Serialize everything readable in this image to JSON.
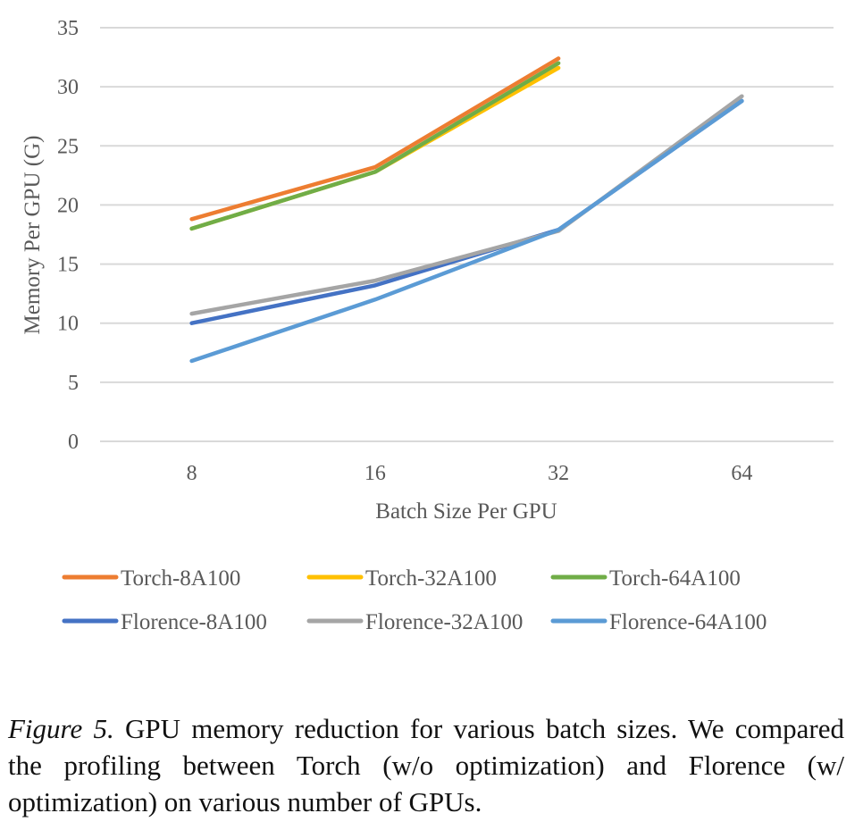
{
  "chart_data": {
    "type": "line",
    "title": "",
    "xlabel": "Batch Size Per GPU",
    "ylabel": "Memory Per GPU (G)",
    "categories": [
      "8",
      "16",
      "32",
      "64"
    ],
    "ylim": [
      0,
      35
    ],
    "yticks": [
      0,
      5,
      10,
      15,
      20,
      25,
      30,
      35
    ],
    "grid": true,
    "legend_position": "bottom",
    "series": [
      {
        "name": "Torch-8A100",
        "color": "#ED7D31",
        "values": [
          18.8,
          23.2,
          32.4,
          null
        ]
      },
      {
        "name": "Torch-32A100",
        "color": "#FFC000",
        "values": [
          18.0,
          22.8,
          31.6,
          null
        ]
      },
      {
        "name": "Torch-64A100",
        "color": "#70AD47",
        "values": [
          18.0,
          22.8,
          32.0,
          null
        ]
      },
      {
        "name": "Florence-8A100",
        "color": "#4472C4",
        "values": [
          10.0,
          13.2,
          17.9,
          28.8
        ]
      },
      {
        "name": "Florence-32A100",
        "color": "#A5A5A5",
        "values": [
          10.8,
          13.6,
          17.8,
          29.2
        ]
      },
      {
        "name": "Florence-64A100",
        "color": "#5B9BD5",
        "values": [
          6.8,
          12.0,
          17.9,
          28.8
        ]
      }
    ]
  },
  "caption": {
    "label": "Figure 5.",
    "text": " GPU memory reduction for various batch sizes.  We compared the profiling between Torch (w/o optimization) and Florence (w/ optimization) on various number of GPUs."
  }
}
